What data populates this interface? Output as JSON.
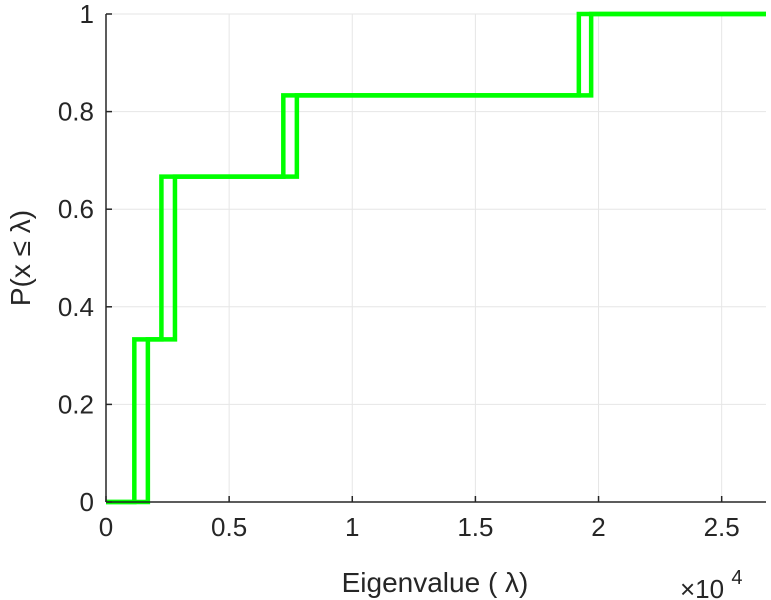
{
  "chart_data": {
    "type": "line",
    "step": true,
    "xlabel": "Eigenvalue (   λ)",
    "ylabel": "P(x ≤ λ)",
    "x_multiplier": {
      "base": "×10",
      "exponent": "4"
    },
    "xlim": [
      0,
      26800
    ],
    "ylim": [
      0,
      1
    ],
    "xticks": [
      0,
      5000,
      10000,
      15000,
      20000,
      25000
    ],
    "xtick_labels": [
      "0",
      "0.5",
      "1",
      "1.5",
      "2",
      "2.5"
    ],
    "yticks": [
      0,
      0.2,
      0.4,
      0.6,
      0.8,
      1
    ],
    "ytick_labels": [
      "0",
      "0.2",
      "0.4",
      "0.6",
      "0.8",
      "1"
    ],
    "grid": true,
    "series": [
      {
        "color": "#00ff00",
        "x": [
          0,
          1150,
          2250,
          7200,
          19200,
          26800
        ],
        "y": [
          0,
          0.3333,
          0.6667,
          0.8333,
          1.0,
          1.0
        ]
      },
      {
        "color": "#00ff00",
        "x": [
          0,
          1700,
          2800,
          7750,
          19700,
          26800
        ],
        "y": [
          0,
          0.3333,
          0.6667,
          0.8333,
          1.0,
          1.0
        ]
      }
    ]
  }
}
